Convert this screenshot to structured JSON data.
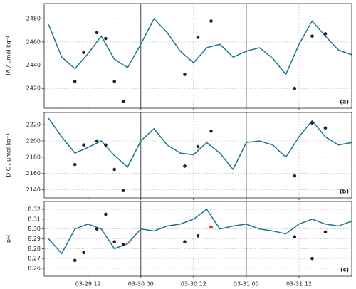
{
  "chart_data": [
    {
      "type": "line",
      "ylabel": "TA / μmol kg⁻¹",
      "annotation": "(a)",
      "grid": true,
      "xlim": [
        "03-29 02",
        "04-01 00"
      ],
      "xticks": [
        "03-29 12",
        "03-30 00",
        "03-30 12",
        "03-31 00",
        "03-31 12"
      ],
      "vlines": [
        "03-30 00",
        "03-31 00"
      ],
      "ylim": [
        2403,
        2493
      ],
      "yticks": [
        2420,
        2440,
        2460,
        2480
      ],
      "series": [
        {
          "mode": "line",
          "color": "#1a7490",
          "x": [
            "03-29 03",
            "03-29 06",
            "03-29 09",
            "03-29 12",
            "03-29 15",
            "03-29 18",
            "03-29 21",
            "03-30 00",
            "03-30 03",
            "03-30 06",
            "03-30 09",
            "03-30 12",
            "03-30 15",
            "03-30 18",
            "03-30 21",
            "03-31 00",
            "03-31 03",
            "03-31 06",
            "03-31 09",
            "03-31 12",
            "03-31 15",
            "03-31 18",
            "03-31 21",
            "04-01 00"
          ],
          "values": [
            2475,
            2447,
            2437,
            2450,
            2465,
            2445,
            2438,
            2458,
            2480,
            2468,
            2452,
            2442,
            2455,
            2458,
            2447,
            2452,
            2455,
            2446,
            2432,
            2458,
            2478,
            2465,
            2453,
            2449
          ]
        },
        {
          "mode": "markers",
          "color": "#222222",
          "x": [
            "03-29 09",
            "03-29 11",
            "03-29 14",
            "03-29 16",
            "03-29 18",
            "03-29 20",
            "03-30 10",
            "03-30 13",
            "03-30 16",
            "03-31 11",
            "03-31 15",
            "03-31 18"
          ],
          "values": [
            2426,
            2451,
            2468,
            2463,
            2426,
            2409,
            2432,
            2464,
            2478,
            2420,
            2465,
            2467
          ]
        }
      ]
    },
    {
      "type": "line",
      "ylabel": "DIC / μmol kg⁻¹",
      "annotation": "(b)",
      "grid": true,
      "xlim": [
        "03-29 02",
        "04-01 00"
      ],
      "xticks": [
        "03-29 12",
        "03-30 00",
        "03-30 12",
        "03-31 00",
        "03-31 12"
      ],
      "vlines": [
        "03-30 00",
        "03-31 00"
      ],
      "ylim": [
        2130,
        2235
      ],
      "yticks": [
        2140,
        2160,
        2180,
        2200,
        2220
      ],
      "series": [
        {
          "mode": "line",
          "color": "#1a7490",
          "x": [
            "03-29 03",
            "03-29 06",
            "03-29 09",
            "03-29 12",
            "03-29 15",
            "03-29 18",
            "03-29 21",
            "03-30 00",
            "03-30 03",
            "03-30 06",
            "03-30 09",
            "03-30 12",
            "03-30 15",
            "03-30 18",
            "03-30 21",
            "03-31 00",
            "03-31 03",
            "03-31 06",
            "03-31 09",
            "03-31 12",
            "03-31 15",
            "03-31 18",
            "03-31 21",
            "04-01 00"
          ],
          "values": [
            2228,
            2205,
            2185,
            2192,
            2200,
            2182,
            2168,
            2200,
            2215,
            2195,
            2185,
            2183,
            2198,
            2185,
            2165,
            2198,
            2200,
            2195,
            2180,
            2205,
            2225,
            2205,
            2195,
            2198
          ]
        },
        {
          "mode": "markers",
          "color": "#222222",
          "x": [
            "03-29 09",
            "03-29 11",
            "03-29 14",
            "03-29 16",
            "03-29 18",
            "03-29 20",
            "03-30 10",
            "03-30 13",
            "03-30 16",
            "03-31 11",
            "03-31 15",
            "03-31 18"
          ],
          "values": [
            2171,
            2195,
            2200,
            2195,
            2165,
            2139,
            2169,
            2193,
            2212,
            2157,
            2222,
            2216
          ]
        }
      ]
    },
    {
      "type": "line",
      "ylabel": "pH",
      "annotation": "(c)",
      "grid": true,
      "xlim": [
        "03-29 02",
        "04-01 00"
      ],
      "xticks": [
        "03-29 12",
        "03-30 00",
        "03-30 12",
        "03-31 00",
        "03-31 12"
      ],
      "vlines": [
        "03-30 00",
        "03-31 00"
      ],
      "ylim": [
        8.252,
        8.328
      ],
      "yticks": [
        8.26,
        8.27,
        8.28,
        8.29,
        {
          "value": 8.3,
          "label": "8.30"
        },
        8.31,
        8.32
      ],
      "series": [
        {
          "mode": "line",
          "color": "#1a7490",
          "x": [
            "03-29 03",
            "03-29 06",
            "03-29 09",
            "03-29 12",
            "03-29 15",
            "03-29 18",
            "03-29 21",
            "03-30 00",
            "03-30 03",
            "03-30 06",
            "03-30 09",
            "03-30 12",
            "03-30 15",
            "03-30 18",
            "03-30 21",
            "03-31 00",
            "03-31 03",
            "03-31 06",
            "03-31 09",
            "03-31 12",
            "03-31 15",
            "03-31 18",
            "03-31 21",
            "04-01 00"
          ],
          "values": [
            8.29,
            8.275,
            8.3,
            8.305,
            8.3,
            8.28,
            8.285,
            8.3,
            8.298,
            8.303,
            8.305,
            8.31,
            8.32,
            8.3,
            8.303,
            8.305,
            8.3,
            8.298,
            8.295,
            8.305,
            8.31,
            8.305,
            8.303,
            8.308
          ]
        },
        {
          "mode": "markers",
          "color": "#222222",
          "x": [
            "03-29 09",
            "03-29 11",
            "03-29 14",
            "03-29 16",
            "03-29 18",
            "03-29 20",
            "03-30 10",
            "03-30 13",
            "03-31 11",
            "03-31 15",
            "03-31 18"
          ],
          "values": [
            8.268,
            8.276,
            8.3,
            8.315,
            8.287,
            8.284,
            8.287,
            8.293,
            8.292,
            8.27,
            8.297
          ]
        },
        {
          "mode": "markers",
          "color": "#e8201e",
          "x": [
            "03-30 16"
          ],
          "values": [
            8.302
          ]
        }
      ]
    }
  ]
}
